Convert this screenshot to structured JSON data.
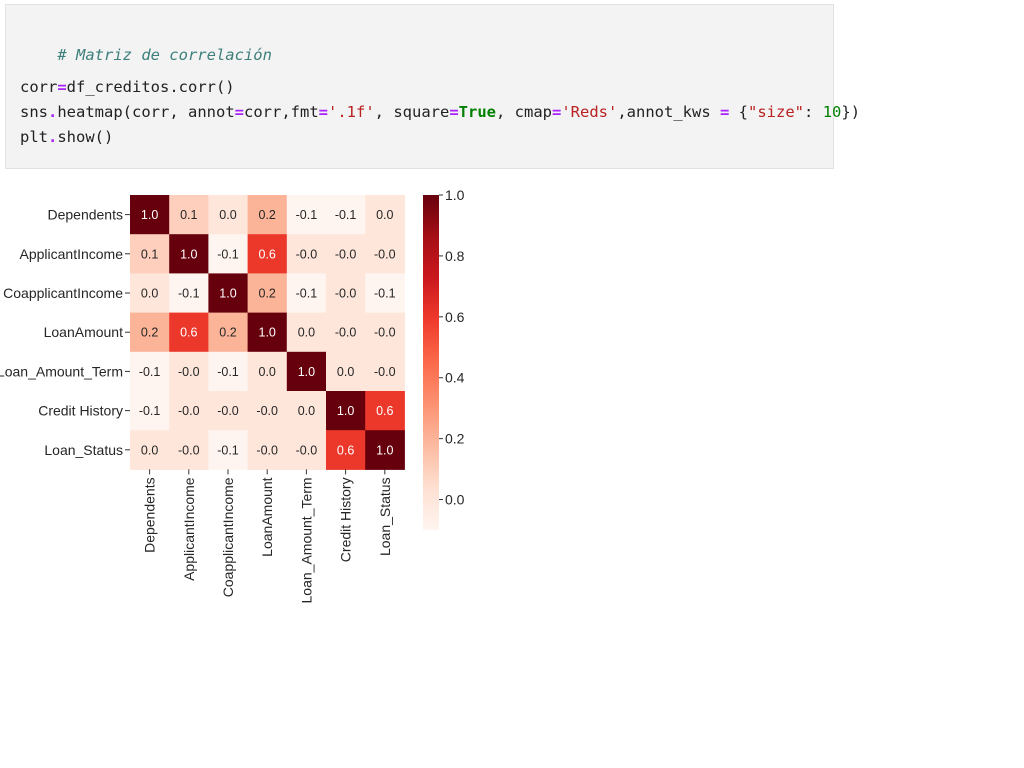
{
  "code": {
    "comment": "# Matriz de correlación",
    "line1": {
      "lhs": "corr",
      "eq": "=",
      "rhs": "df_creditos.corr()"
    },
    "line2": {
      "t1": "sns",
      "dot1": ".",
      "t2": "heatmap(corr, annot",
      "eq1": "=",
      "t3": "corr,fmt",
      "eq2": "=",
      "s1": "'.1f'",
      "t4": ", square",
      "eq3": "=",
      "k1": "True",
      "t5": ", cmap",
      "eq4": "=",
      "s2": "'Reds'",
      "t6": ",annot_kws ",
      "eq5": "=",
      "t7": " {",
      "s3": "\"size\"",
      "t8": ": ",
      "n1": "10",
      "t9": "})"
    },
    "line3": {
      "t1": "plt",
      "dot": ".",
      "t2": "show()"
    }
  },
  "chart_data": {
    "type": "heatmap",
    "title": "",
    "labels": [
      "Dependents",
      "ApplicantIncome",
      "CoapplicantIncome",
      "LoanAmount",
      "Loan_Amount_Term",
      "Credit History",
      "Loan_Status"
    ],
    "values": [
      [
        1.0,
        0.1,
        0.0,
        0.2,
        -0.1,
        -0.1,
        0.0
      ],
      [
        0.1,
        1.0,
        -0.1,
        0.6,
        -0.0,
        -0.0,
        -0.0
      ],
      [
        0.0,
        -0.1,
        1.0,
        0.2,
        -0.1,
        -0.0,
        -0.1
      ],
      [
        0.2,
        0.6,
        0.2,
        1.0,
        0.0,
        -0.0,
        -0.0
      ],
      [
        -0.1,
        -0.0,
        -0.1,
        0.0,
        1.0,
        0.0,
        -0.0
      ],
      [
        -0.1,
        -0.0,
        -0.0,
        -0.0,
        0.0,
        1.0,
        0.6
      ],
      [
        0.0,
        -0.0,
        -0.1,
        -0.0,
        -0.0,
        0.6,
        1.0
      ]
    ],
    "annot_fmt": ".1f",
    "cmap": "Reds",
    "vmin": -0.1,
    "vmax": 1.0,
    "colorbar_ticks": [
      "1.0",
      "0.8",
      "0.6",
      "0.4",
      "0.2",
      "0.0"
    ]
  }
}
